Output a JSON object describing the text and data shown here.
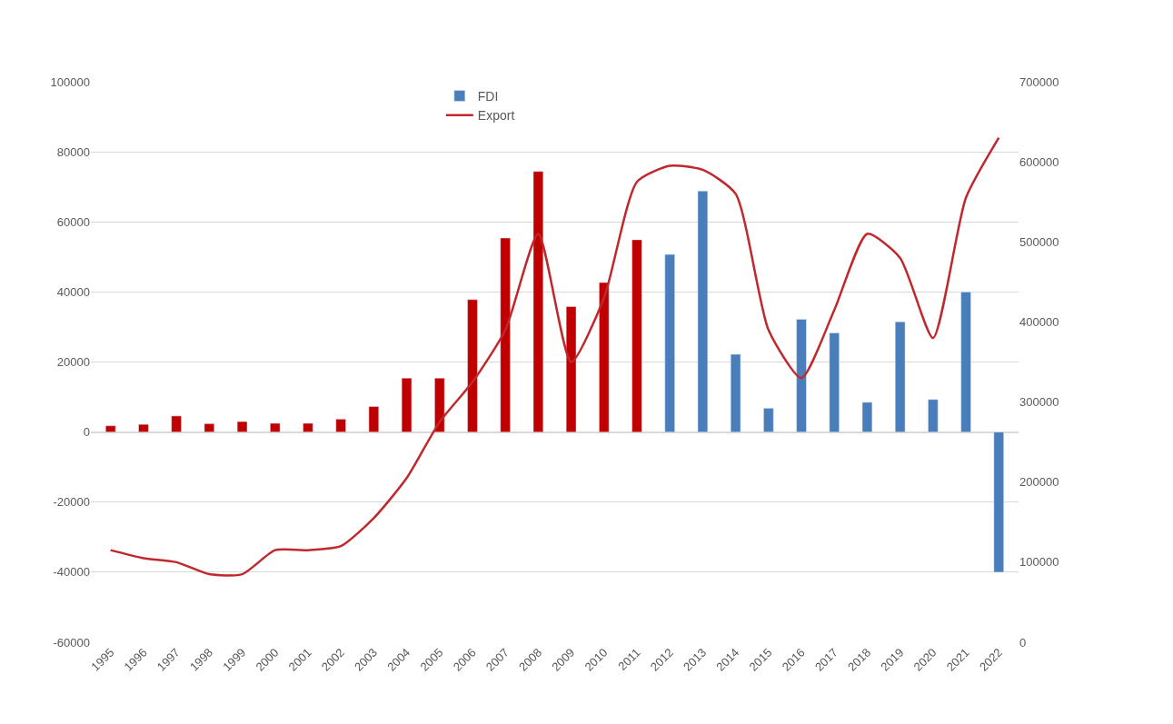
{
  "chart_data": {
    "type": "bar",
    "categories": [
      "1995",
      "1996",
      "1997",
      "1998",
      "1999",
      "2000",
      "2001",
      "2002",
      "2003",
      "2004",
      "2005",
      "2006",
      "2007",
      "2008",
      "2009",
      "2010",
      "2011",
      "2012",
      "2013",
      "2014",
      "2015",
      "2016",
      "2017",
      "2018",
      "2019",
      "2020",
      "2021",
      "2022"
    ],
    "series": [
      {
        "name": "FDI",
        "color": "#4a7ebb",
        "colors": [
          "#c00000",
          "#c00000",
          "#c00000",
          "#c00000",
          "#c00000",
          "#c00000",
          "#c00000",
          "#c00000",
          "#c00000",
          "#c00000",
          "#c00000",
          "#c00000",
          "#c00000",
          "#c00000",
          "#c00000",
          "#c00000",
          "#c00000",
          "#4a7ebb",
          "#4a7ebb",
          "#4a7ebb",
          "#4a7ebb",
          "#4a7ebb",
          "#4a7ebb",
          "#4a7ebb",
          "#4a7ebb",
          "#4a7ebb",
          "#4a7ebb",
          "#4a7ebb"
        ],
        "values": [
          1800,
          2200,
          4600,
          2400,
          3000,
          2500,
          2500,
          3700,
          7300,
          15400,
          15400,
          37800,
          55400,
          74400,
          35800,
          42700,
          54900,
          50700,
          68800,
          22200,
          6800,
          32200,
          28300,
          8500,
          31500,
          9300,
          40000,
          -40000
        ]
      },
      {
        "name": "Export",
        "type": "line",
        "axis": "y2",
        "color": "#c0282d",
        "values": [
          115000,
          105000,
          100000,
          85000,
          85000,
          115000,
          115000,
          120000,
          155000,
          205000,
          275000,
          325000,
          390000,
          510000,
          350000,
          430000,
          575000,
          595000,
          590000,
          560000,
          390000,
          330000,
          415000,
          510000,
          480000,
          380000,
          555000,
          630000
        ]
      }
    ],
    "ylim": [
      -60000,
      100000
    ],
    "yticks": [
      -60000,
      -40000,
      -20000,
      0,
      20000,
      40000,
      60000,
      80000,
      100000
    ],
    "y2lim": [
      0,
      700000
    ],
    "y2ticks": [
      0,
      100000,
      200000,
      300000,
      400000,
      500000,
      600000,
      700000
    ],
    "grid": "y",
    "legend": "top",
    "marker": "none",
    "line_style": "solid"
  }
}
